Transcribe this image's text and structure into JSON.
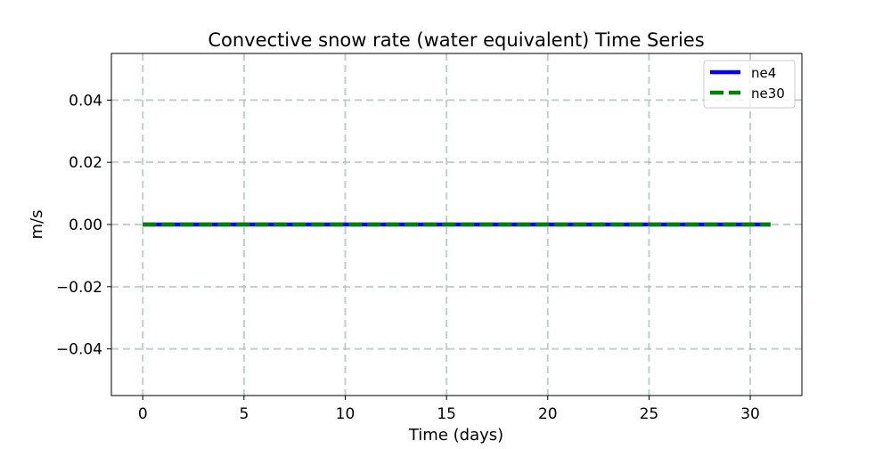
{
  "chart_data": {
    "type": "line",
    "title": "Convective snow rate (water equivalent) Time Series",
    "xlabel": "Time (days)",
    "ylabel": "m/s",
    "xlim": [
      -1.55,
      32.55
    ],
    "ylim": [
      -0.055,
      0.055
    ],
    "x_ticks": [
      0,
      5,
      10,
      15,
      20,
      25,
      30
    ],
    "x_tick_labels": [
      "0",
      "5",
      "10",
      "15",
      "20",
      "25",
      "30"
    ],
    "y_ticks": [
      0.04,
      0.02,
      0.0,
      -0.02,
      -0.04
    ],
    "y_tick_labels": [
      "0.04",
      "0.02",
      "0.00",
      "−0.02",
      "−0.04"
    ],
    "grid": true,
    "grid_style": "dashed",
    "legend_position": "top-right",
    "series": [
      {
        "name": "ne4",
        "color": "#0000ff",
        "line_style": "solid",
        "x": [
          0,
          1,
          2,
          3,
          4,
          5,
          6,
          7,
          8,
          9,
          10,
          11,
          12,
          13,
          14,
          15,
          16,
          17,
          18,
          19,
          20,
          21,
          22,
          23,
          24,
          25,
          26,
          27,
          28,
          29,
          30,
          31
        ],
        "values": [
          0,
          0,
          0,
          0,
          0,
          0,
          0,
          0,
          0,
          0,
          0,
          0,
          0,
          0,
          0,
          0,
          0,
          0,
          0,
          0,
          0,
          0,
          0,
          0,
          0,
          0,
          0,
          0,
          0,
          0,
          0,
          0
        ]
      },
      {
        "name": "ne30",
        "color": "#008000",
        "line_style": "dashed",
        "x": [
          0,
          1,
          2,
          3,
          4,
          5,
          6,
          7,
          8,
          9,
          10,
          11,
          12,
          13,
          14,
          15,
          16,
          17,
          18,
          19,
          20,
          21,
          22,
          23,
          24,
          25,
          26,
          27,
          28,
          29,
          30,
          31
        ],
        "values": [
          0,
          0,
          0,
          0,
          0,
          0,
          0,
          0,
          0,
          0,
          0,
          0,
          0,
          0,
          0,
          0,
          0,
          0,
          0,
          0,
          0,
          0,
          0,
          0,
          0,
          0,
          0,
          0,
          0,
          0,
          0,
          0
        ]
      }
    ]
  }
}
